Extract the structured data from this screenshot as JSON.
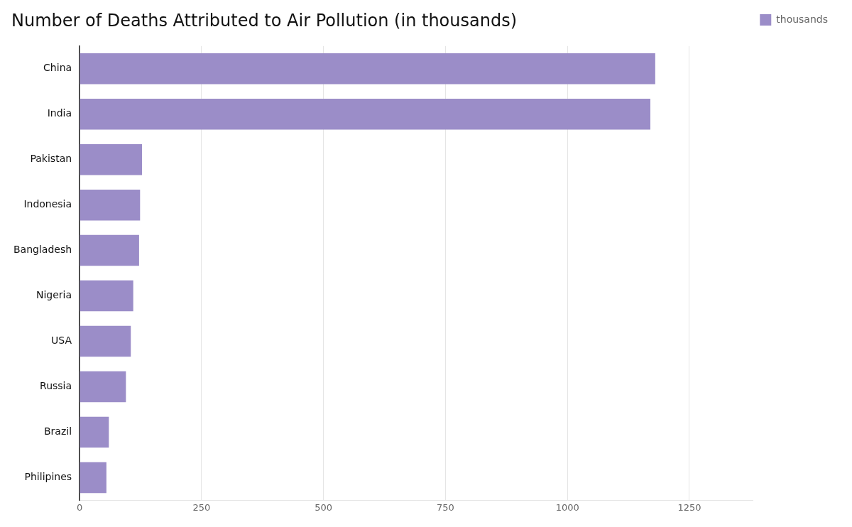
{
  "chart_data": {
    "type": "bar",
    "orientation": "horizontal",
    "title": "Number of Deaths Attributed to Air Pollution (in thousands)",
    "categories": [
      "China",
      "India",
      "Pakistan",
      "Indonesia",
      "Bangladesh",
      "Nigeria",
      "USA",
      "Russia",
      "Brazil",
      "Philipines"
    ],
    "series": [
      {
        "name": "thousands",
        "color": "#9b8dc8",
        "values": [
          1180,
          1170,
          128,
          124,
          122,
          110,
          105,
          95,
          60,
          55
        ]
      }
    ],
    "xlim": [
      0,
      1380
    ],
    "xticks": [
      0,
      250,
      500,
      750,
      1000,
      1250
    ],
    "grid": true,
    "legend": "right"
  }
}
